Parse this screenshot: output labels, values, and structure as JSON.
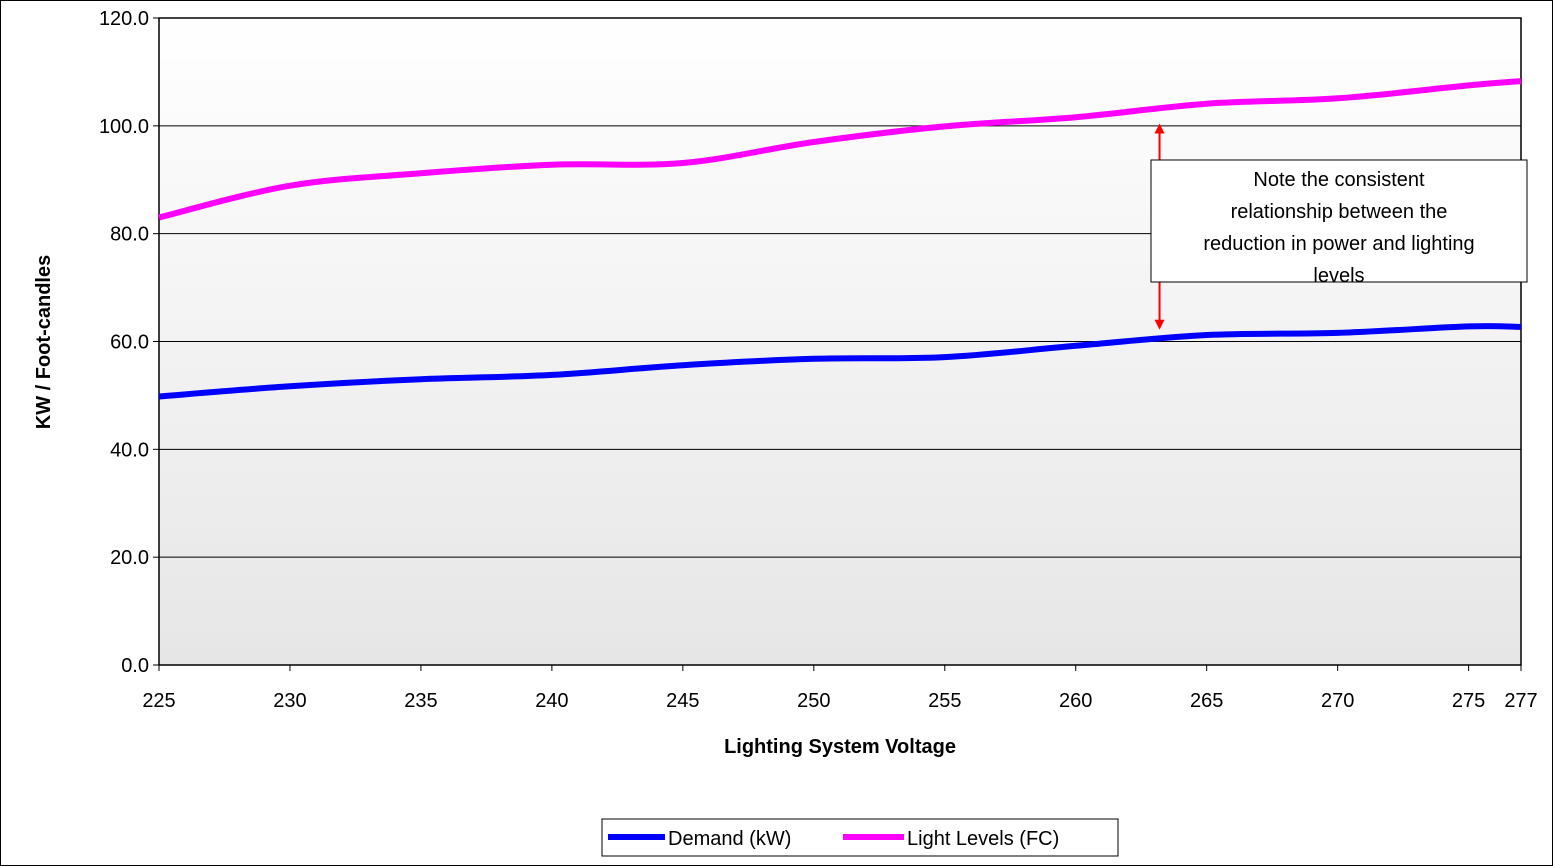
{
  "chart_data": {
    "type": "line",
    "xlabel": "Lighting System Voltage",
    "ylabel": "KW / Foot-candles",
    "xlim": [
      225,
      277
    ],
    "ylim": [
      0,
      120
    ],
    "x_ticks": [
      "225",
      "230",
      "235",
      "240",
      "245",
      "250",
      "255",
      "260",
      "265",
      "270",
      "275",
      "277"
    ],
    "y_ticks": [
      "0.0",
      "20.0",
      "40.0",
      "60.0",
      "80.0",
      "100.0",
      "120.0"
    ],
    "grid": true,
    "legend_position": "bottom",
    "annotation": {
      "lines": [
        "Note the consistent",
        "relationship between the",
        "reduction in power and lighting",
        "levels"
      ],
      "arrow_x": 263.2,
      "arrow_from": 62,
      "arrow_to": 101
    },
    "series": [
      {
        "name": "Demand (kW)",
        "color": "#0000FF",
        "x": [
          225,
          230,
          235,
          240,
          245,
          250,
          255,
          260,
          265,
          270,
          275,
          277
        ],
        "y": [
          49.8,
          51.7,
          53.0,
          53.8,
          55.6,
          56.8,
          57.1,
          59.2,
          61.2,
          61.6,
          62.8,
          62.7
        ]
      },
      {
        "name": "Light Levels (FC)",
        "color": "#FF00FF",
        "x": [
          225,
          230,
          235,
          240,
          245,
          250,
          255,
          260,
          265,
          270,
          275,
          277
        ],
        "y": [
          83.0,
          88.9,
          91.2,
          92.8,
          93.1,
          97.0,
          99.9,
          101.6,
          104.1,
          105.1,
          107.5,
          108.3
        ]
      }
    ]
  }
}
